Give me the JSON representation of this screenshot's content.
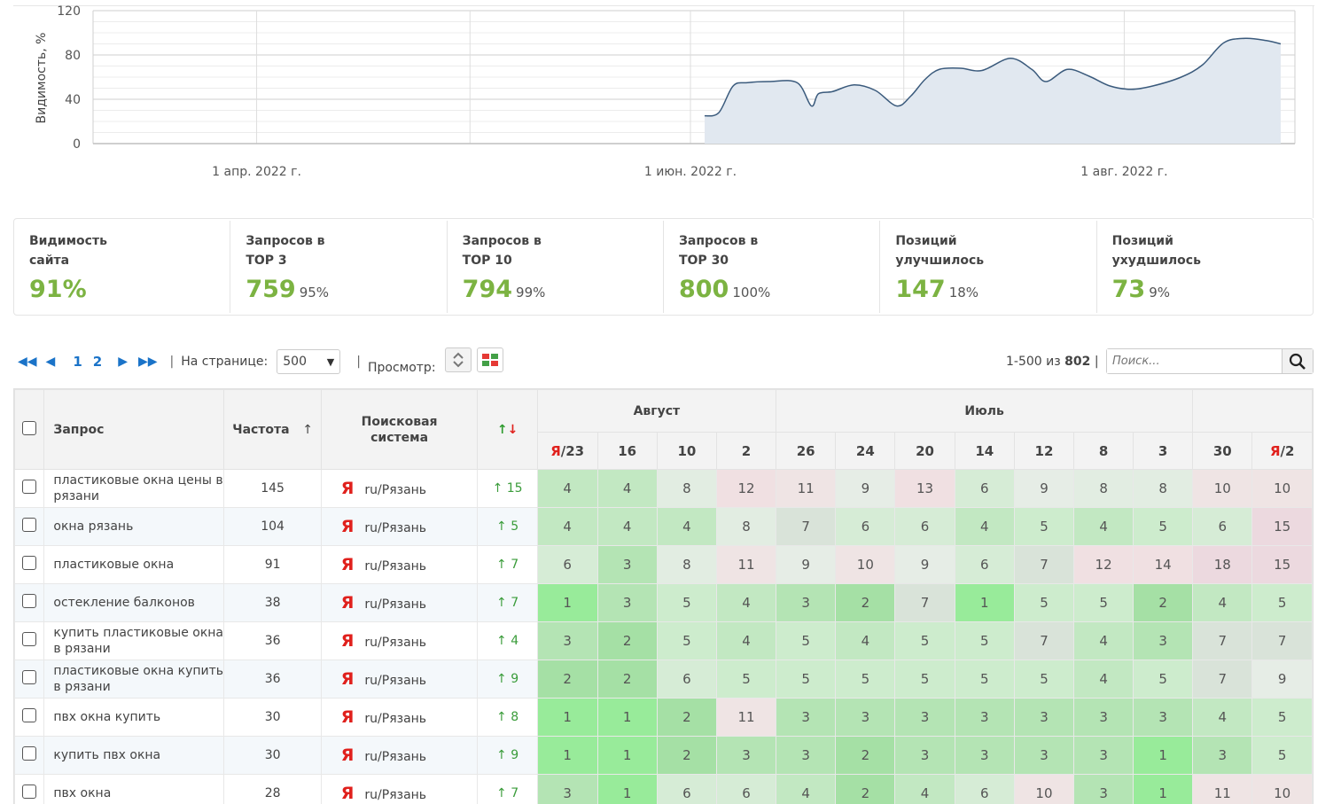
{
  "chart_data": {
    "type": "area",
    "ylabel": "Видимость, %",
    "yticks": [
      "0",
      "40",
      "80",
      "120"
    ],
    "ylim": [
      0,
      120
    ],
    "xtick_labels": [
      "1 апр. 2022 г.",
      "1 июн. 2022 г.",
      "1 авг. 2022 г."
    ],
    "x": [
      "2022-06-03",
      "2022-06-05",
      "2022-06-07",
      "2022-06-09",
      "2022-06-12",
      "2022-06-16",
      "2022-06-18",
      "2022-06-19",
      "2022-06-21",
      "2022-06-24",
      "2022-06-27",
      "2022-06-30",
      "2022-07-02",
      "2022-07-04",
      "2022-07-06",
      "2022-07-09",
      "2022-07-12",
      "2022-07-16",
      "2022-07-19",
      "2022-07-21",
      "2022-07-24",
      "2022-07-27",
      "2022-07-30",
      "2022-08-02",
      "2022-08-05",
      "2022-08-09",
      "2022-08-12",
      "2022-08-15",
      "2022-08-18",
      "2022-08-21",
      "2022-08-23"
    ],
    "values": [
      25,
      28,
      52,
      55,
      56,
      55,
      34,
      45,
      47,
      53,
      48,
      34,
      43,
      58,
      67,
      68,
      66,
      77,
      67,
      56,
      67,
      61,
      52,
      49,
      52,
      60,
      71,
      91,
      95,
      93,
      90
    ],
    "grid": true
  },
  "stats": [
    {
      "title": "Видимость сайта",
      "value": "91%",
      "pct": ""
    },
    {
      "title": "Запросов в ТОР 3",
      "value": "759",
      "pct": "95%"
    },
    {
      "title": "Запросов в ТОР 10",
      "value": "794",
      "pct": "99%"
    },
    {
      "title": "Запросов в ТОР 30",
      "value": "800",
      "pct": "100%"
    },
    {
      "title": "Позиций улучшилось",
      "value": "147",
      "pct": "18%"
    },
    {
      "title": "Позиций ухудшилось",
      "value": "73",
      "pct": "9%"
    }
  ],
  "pager": {
    "pages": [
      "1",
      "2"
    ],
    "per_page_label": "На странице:",
    "per_page_value": "500",
    "view_label": "Просмотр:",
    "range": "1-500 из",
    "total": "802",
    "search_placeholder": "Поиск..."
  },
  "table": {
    "headers": {
      "query": "Запрос",
      "freq": "Частота",
      "freq_sort": "↑",
      "engine": "Поисковая система",
      "dyn_up": "↑",
      "dyn_down": "↓"
    },
    "months": [
      "Август",
      "Июль"
    ],
    "dates": [
      {
        "mark": "Я",
        "label": "/23"
      },
      {
        "mark": "",
        "label": "16"
      },
      {
        "mark": "",
        "label": "10"
      },
      {
        "mark": "",
        "label": "2"
      },
      {
        "mark": "",
        "label": "26"
      },
      {
        "mark": "",
        "label": "24"
      },
      {
        "mark": "",
        "label": "20"
      },
      {
        "mark": "",
        "label": "14"
      },
      {
        "mark": "",
        "label": "12"
      },
      {
        "mark": "",
        "label": "8"
      },
      {
        "mark": "",
        "label": "3"
      },
      {
        "mark": "",
        "label": "30"
      },
      {
        "mark": "Я",
        "label": "/2"
      }
    ],
    "rows": [
      {
        "query": "пластиковые окна цены в рязани",
        "freq": "145",
        "engine": "ru/Рязань",
        "dyn": "↑ 15",
        "pos": [
          "4",
          "4",
          "8",
          "12",
          "11",
          "9",
          "13",
          "6",
          "9",
          "8",
          "8",
          "10",
          "10"
        ]
      },
      {
        "query": "окна рязань",
        "freq": "104",
        "engine": "ru/Рязань",
        "dyn": "↑ 5",
        "pos": [
          "4",
          "4",
          "4",
          "8",
          "7",
          "6",
          "6",
          "4",
          "5",
          "4",
          "5",
          "6",
          "15"
        ]
      },
      {
        "query": "пластиковые окна",
        "freq": "91",
        "engine": "ru/Рязань",
        "dyn": "↑ 7",
        "pos": [
          "6",
          "3",
          "8",
          "11",
          "9",
          "10",
          "9",
          "6",
          "7",
          "12",
          "14",
          "18",
          "15"
        ]
      },
      {
        "query": "остекление балконов",
        "freq": "38",
        "engine": "ru/Рязань",
        "dyn": "↑ 7",
        "pos": [
          "1",
          "3",
          "5",
          "4",
          "3",
          "2",
          "7",
          "1",
          "5",
          "5",
          "2",
          "4",
          "5"
        ]
      },
      {
        "query": "купить пластиковые окна в рязани",
        "freq": "36",
        "engine": "ru/Рязань",
        "dyn": "↑ 4",
        "pos": [
          "3",
          "2",
          "5",
          "4",
          "5",
          "4",
          "5",
          "5",
          "7",
          "4",
          "3",
          "7",
          "7"
        ]
      },
      {
        "query": "пластиковые окна купить в рязани",
        "freq": "36",
        "engine": "ru/Рязань",
        "dyn": "↑ 9",
        "pos": [
          "2",
          "2",
          "6",
          "5",
          "5",
          "5",
          "5",
          "5",
          "5",
          "4",
          "5",
          "7",
          "9"
        ]
      },
      {
        "query": "пвх окна купить",
        "freq": "30",
        "engine": "ru/Рязань",
        "dyn": "↑ 8",
        "pos": [
          "1",
          "1",
          "2",
          "11",
          "3",
          "3",
          "3",
          "3",
          "3",
          "3",
          "3",
          "4",
          "5"
        ]
      },
      {
        "query": "купить пвх окна",
        "freq": "30",
        "engine": "ru/Рязань",
        "dyn": "↑ 9",
        "pos": [
          "1",
          "1",
          "2",
          "3",
          "3",
          "2",
          "3",
          "3",
          "3",
          "3",
          "1",
          "3",
          "5"
        ]
      },
      {
        "query": "пвх окна",
        "freq": "28",
        "engine": "ru/Рязань",
        "dyn": "↑ 7",
        "pos": [
          "3",
          "1",
          "6",
          "6",
          "4",
          "2",
          "4",
          "6",
          "10",
          "3",
          "1",
          "11",
          "10"
        ]
      }
    ]
  }
}
